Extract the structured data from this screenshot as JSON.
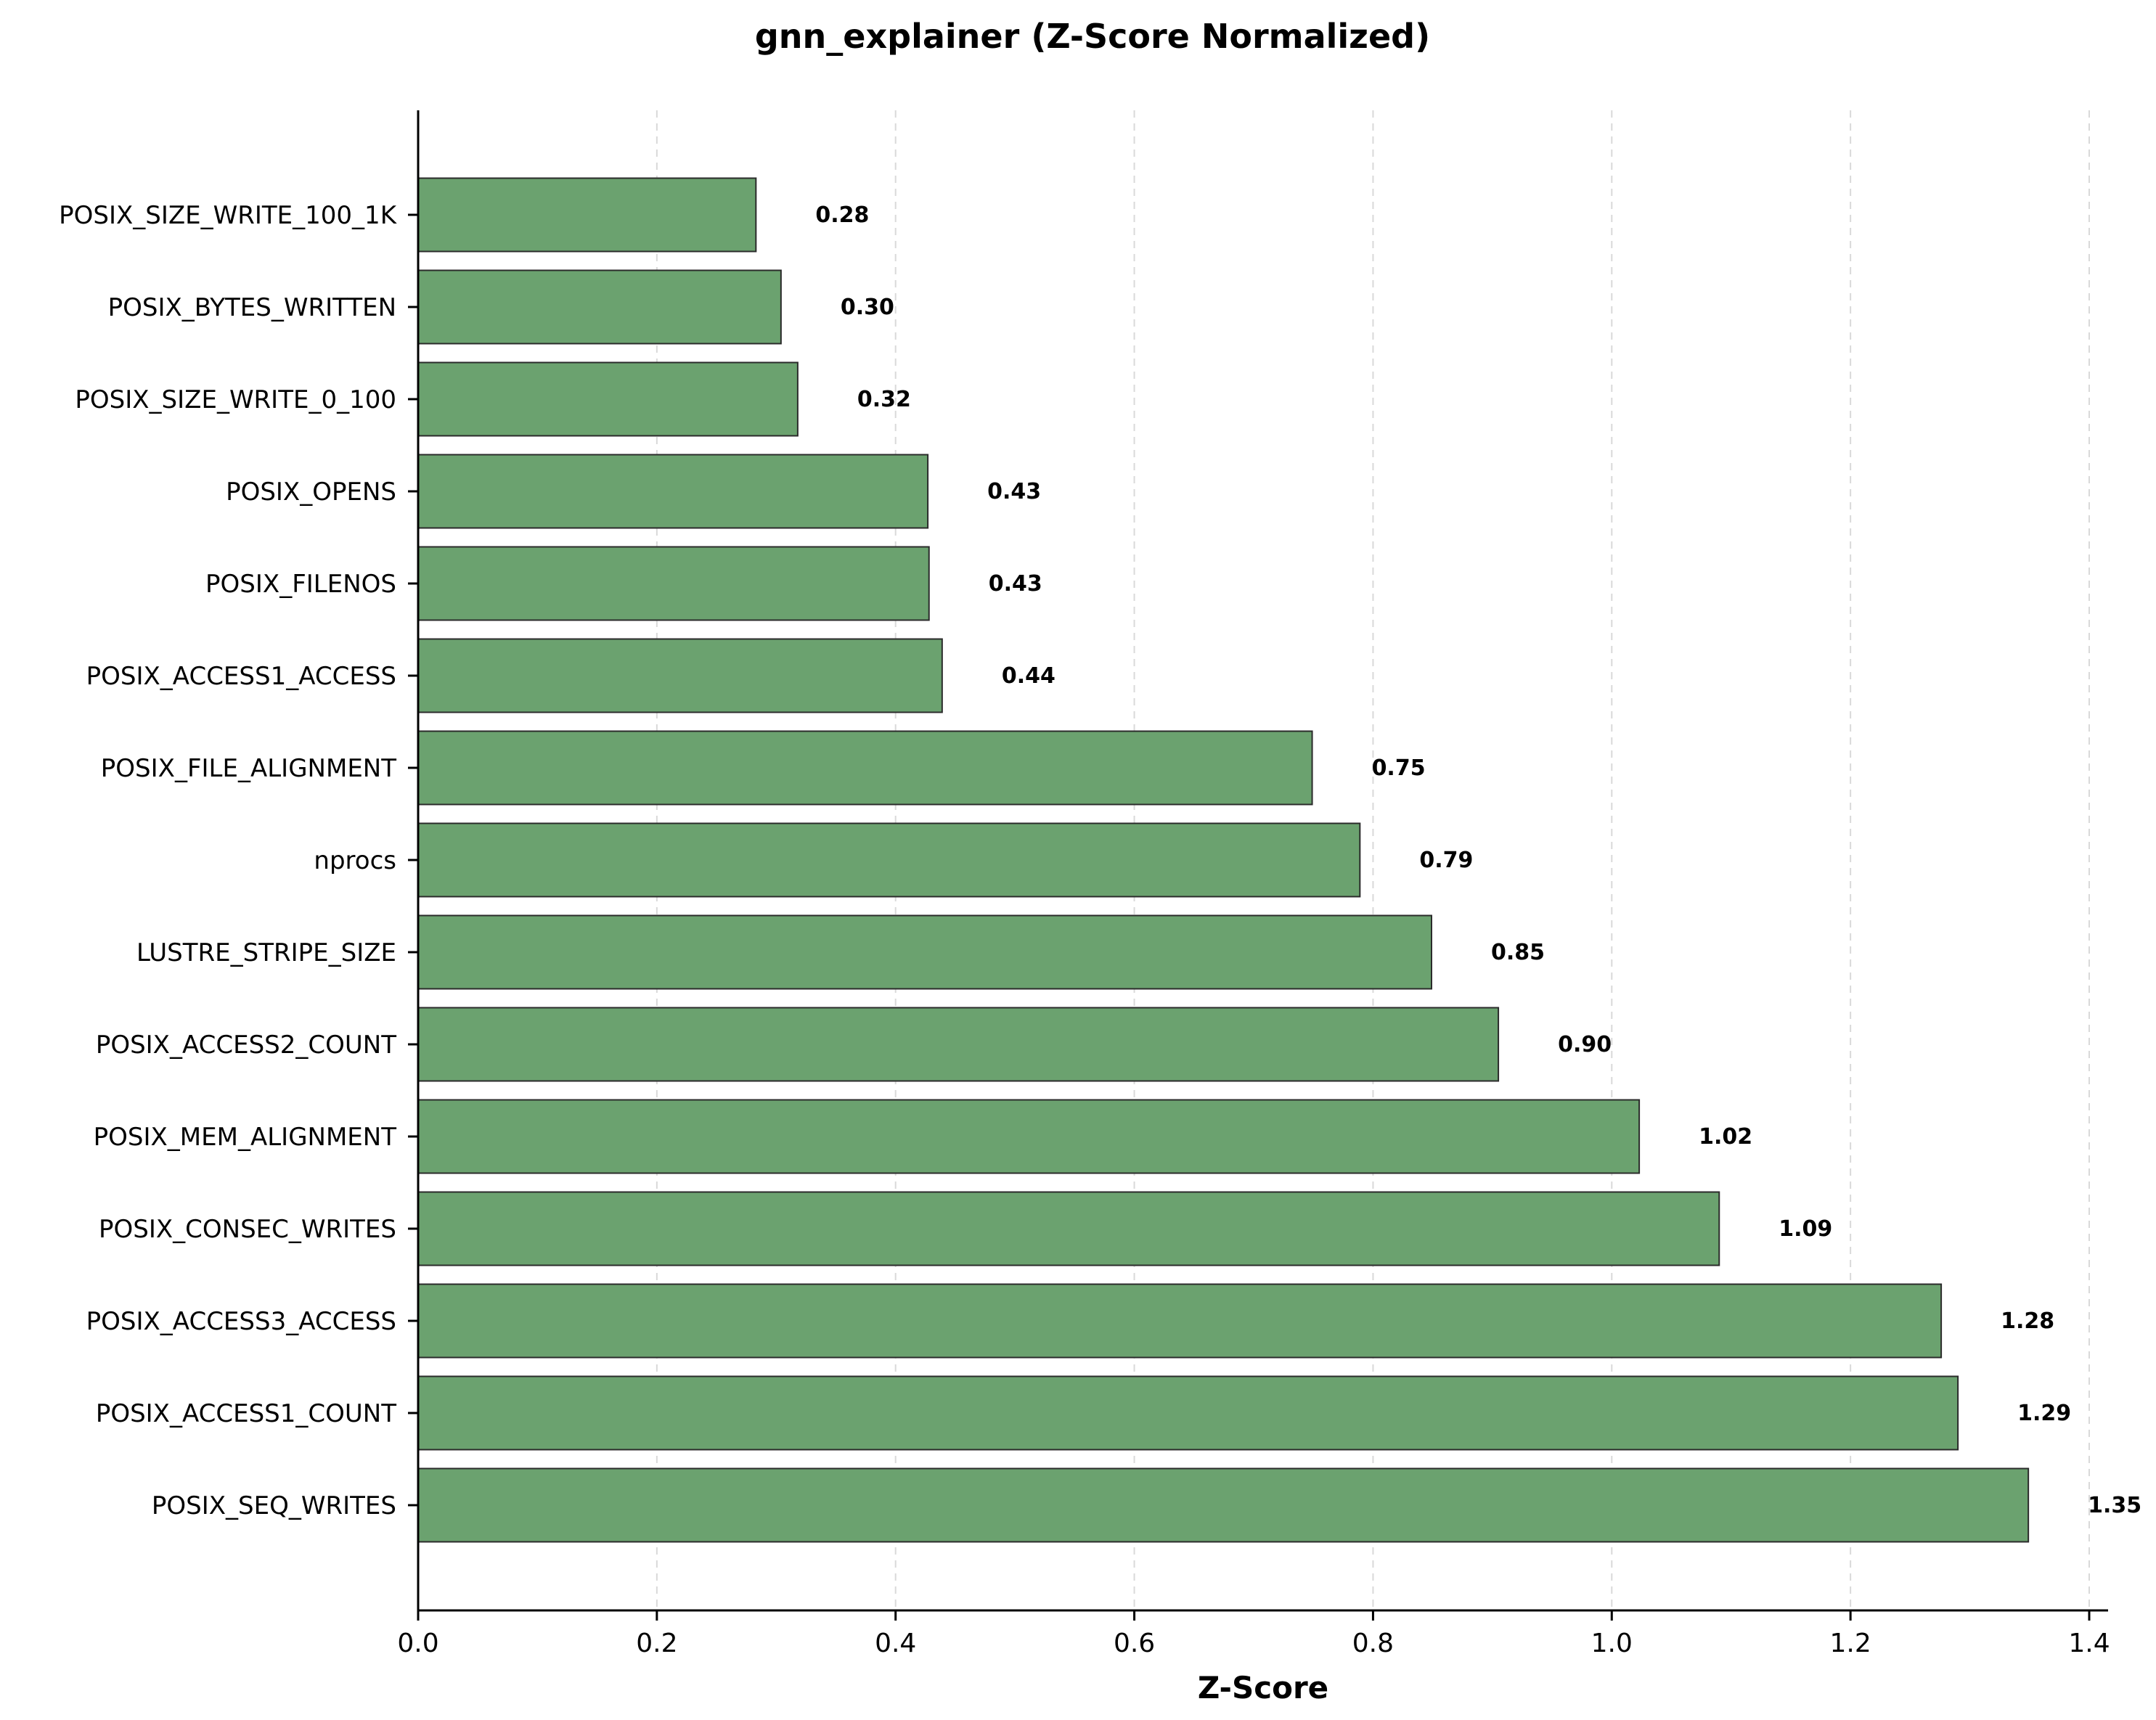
{
  "chart_data": {
    "type": "bar",
    "orientation": "horizontal",
    "title": "gnn_explainer (Z-Score Normalized)",
    "xlabel": "Z-Score",
    "ylabel": "",
    "xlim": [
      0,
      1.42
    ],
    "x_ticks": [
      0.0,
      0.2,
      0.4,
      0.6,
      0.8,
      1.0,
      1.2,
      1.4
    ],
    "x_tick_labels": [
      "0.0",
      "0.2",
      "0.4",
      "0.6",
      "0.8",
      "1.0",
      "1.2",
      "1.4"
    ],
    "grid": "vertical dashed",
    "bar_color": "#6ba26f",
    "bar_edge_color": "#2b2b2b",
    "categories": [
      "POSIX_SIZE_WRITE_100_1K",
      "POSIX_BYTES_WRITTEN",
      "POSIX_SIZE_WRITE_0_100",
      "POSIX_OPENS",
      "POSIX_FILENOS",
      "POSIX_ACCESS1_ACCESS",
      "POSIX_FILE_ALIGNMENT",
      "nprocs",
      "LUSTRE_STRIPE_SIZE",
      "POSIX_ACCESS2_COUNT",
      "POSIX_MEM_ALIGNMENT",
      "POSIX_CONSEC_WRITES",
      "POSIX_ACCESS3_ACCESS",
      "POSIX_ACCESS1_COUNT",
      "POSIX_SEQ_WRITES"
    ],
    "values": [
      0.283,
      0.304,
      0.318,
      0.427,
      0.428,
      0.439,
      0.749,
      0.789,
      0.849,
      0.905,
      1.023,
      1.09,
      1.276,
      1.29,
      1.349
    ],
    "value_labels": [
      "0.28",
      "0.30",
      "0.32",
      "0.43",
      "0.43",
      "0.44",
      "0.75",
      "0.79",
      "0.85",
      "0.90",
      "1.02",
      "1.09",
      "1.28",
      "1.29",
      "1.35"
    ]
  }
}
